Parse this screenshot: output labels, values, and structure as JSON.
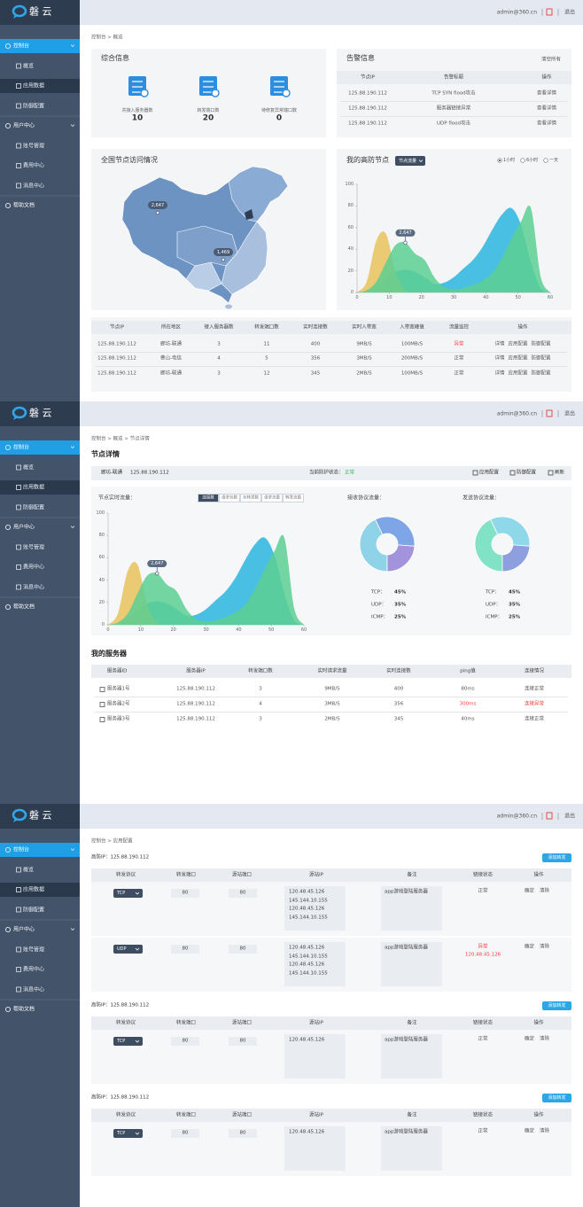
{
  "logo": "磐 云",
  "header": {
    "user": "admin@360.cn",
    "logout": "退出"
  },
  "sidebar": {
    "active_group": 0,
    "active_item": 1,
    "groups": [
      {
        "label": "控制台",
        "items": [
          "概览",
          "应用数据",
          "防御配置"
        ]
      },
      {
        "label": "用户中心",
        "items": [
          "账号管理",
          "费用中心",
          "消息中心"
        ]
      },
      {
        "label": "帮助文档",
        "items": []
      }
    ]
  },
  "screens": [
    {
      "breadcrumb": "控制台  >  概览",
      "summary": {
        "title": "综合信息",
        "stats": [
          {
            "label": "共接入服务器数",
            "value": 10
          },
          {
            "label": "转发端口数",
            "value": 20
          },
          {
            "label": "待修复异常端口数",
            "value": 0
          }
        ]
      },
      "alerts": {
        "title": "告警信息",
        "clear": "清空所有",
        "columns": [
          "节点IP",
          "告警标题",
          "操作"
        ],
        "rows": [
          [
            "125.88.190.112",
            "TCP SYN flood攻击",
            "查看详情"
          ],
          [
            "125.88.190.112",
            "服务器链接异常",
            "查看详情"
          ],
          [
            "125.88.190.112",
            "UDP flood攻击",
            "查看详情"
          ]
        ]
      },
      "map": {
        "title": "全国节点访问情况",
        "markers": [
          {
            "value": 2647,
            "label": "2,647"
          },
          {
            "value": 1469,
            "label": "1,469"
          }
        ]
      },
      "nodes_chart": {
        "type": "area",
        "title": "我的高防节点",
        "dropdown": "节点流量",
        "ranges": [
          "1小时",
          "6小时",
          "一天"
        ],
        "selected_range": 0,
        "x": [
          0,
          3,
          6,
          9,
          12,
          15,
          18,
          21,
          24,
          27,
          30,
          33,
          36,
          39,
          42,
          45,
          48,
          51,
          54,
          57,
          60
        ],
        "xlim": [
          0,
          60
        ],
        "xticks": [
          0,
          10,
          20,
          30,
          40,
          50,
          60
        ],
        "ylim": [
          0,
          100
        ],
        "yticks": [
          0,
          20,
          40,
          60,
          80,
          100
        ],
        "grid": false,
        "series": [
          {
            "color": "#2ab6df",
            "values": [
              0,
              1,
              6,
              13,
              19,
              21,
              19,
              14,
              8,
              9,
              14,
              22,
              30,
              42,
              58,
              72,
              78,
              62,
              28,
              4,
              0
            ]
          },
          {
            "color": "#e8c25c",
            "values": [
              0,
              10,
              48,
              54,
              18,
              2,
              0,
              0,
              0,
              0,
              0,
              0,
              0,
              0,
              0,
              0,
              0,
              0,
              0,
              0,
              0
            ]
          },
          {
            "color": "#5ccf92",
            "values": [
              0,
              2,
              10,
              28,
              44,
              46,
              36,
              30,
              14,
              5,
              3,
              4,
              7,
              11,
              18,
              32,
              50,
              66,
              78,
              15,
              0
            ]
          }
        ],
        "annotation": {
          "value": 2647,
          "label": "2,647"
        }
      },
      "nodes_table": {
        "columns": [
          "节点IP",
          "所在地区",
          "接入服务器数",
          "转发端口数",
          "实时连接数",
          "实时入带宽",
          "入带宽峰值",
          "流量监控",
          "操作"
        ],
        "rows": [
          [
            "125.88.190.112",
            "廊坊-联通",
            3,
            11,
            400,
            "9MB/S",
            "100MB/S",
            {
              "text": "异常",
              "color": "#f0413c"
            },
            [
              "详情",
              "应用配置",
              "防御配置"
            ]
          ],
          [
            "125.88.190.112",
            "佛山-电信",
            4,
            5,
            356,
            "3MB/S",
            "200MB/S",
            {
              "text": "正常"
            },
            [
              "详情",
              "应用配置",
              "防御配置"
            ]
          ],
          [
            "125.88.190.112",
            "廊坊-联通",
            3,
            12,
            345,
            "2MB/S",
            "100MB/S",
            {
              "text": "正常"
            },
            [
              "详情",
              "应用配置",
              "防御配置"
            ]
          ]
        ]
      }
    },
    {
      "breadcrumb": "控制台  >  概览  >  节点详情",
      "title": "节点详情",
      "node": {
        "region": "廊坊-联通",
        "ip": "125.88.190.112",
        "status_label": "当前防护状态：",
        "status": "正常",
        "status_color": "#2fbd5a",
        "actions": [
          "应用配置",
          "防御配置",
          "刷新"
        ]
      },
      "traffic_chart": {
        "type": "area",
        "title": "节点实时流量：",
        "tabs": [
          "连接数",
          "请求包数",
          "包转发数",
          "请求流量",
          "转发流量"
        ],
        "active_tab": 0,
        "x": [
          0,
          3,
          6,
          9,
          12,
          15,
          18,
          21,
          24,
          27,
          30,
          33,
          36,
          39,
          42,
          45,
          48,
          51,
          54,
          57,
          60
        ],
        "xlim": [
          0,
          60
        ],
        "xticks": [
          0,
          10,
          20,
          30,
          40,
          50,
          60
        ],
        "ylim": [
          0,
          100
        ],
        "yticks": [
          0,
          20,
          40,
          60,
          80,
          100
        ],
        "grid": false,
        "series": [
          {
            "color": "#2ab6df",
            "values": [
              0,
              1,
              6,
              13,
              19,
              21,
              19,
              14,
              8,
              9,
              14,
              22,
              30,
              42,
              58,
              72,
              78,
              62,
              28,
              4,
              0
            ]
          },
          {
            "color": "#e8c25c",
            "values": [
              0,
              10,
              48,
              54,
              18,
              2,
              0,
              0,
              0,
              0,
              0,
              0,
              0,
              0,
              0,
              0,
              0,
              0,
              0,
              0,
              0
            ]
          },
          {
            "color": "#5ccf92",
            "values": [
              0,
              2,
              10,
              28,
              44,
              46,
              36,
              30,
              14,
              5,
              3,
              4,
              7,
              11,
              18,
              32,
              50,
              66,
              78,
              15,
              0
            ]
          }
        ],
        "annotation": {
          "value": 2647,
          "label": "2,647"
        }
      },
      "protocol_charts": [
        {
          "type": "donut",
          "title": "接收协议流量：",
          "categories": [
            "TCP：",
            "UDP：",
            "ICMP："
          ],
          "values": [
            45,
            35,
            25
          ],
          "value_labels": [
            "45%",
            "35%",
            "25%"
          ],
          "colors": [
            "#8fd3e8",
            "#7ea6e6",
            "#a393dc"
          ]
        },
        {
          "type": "donut",
          "title": "发送协议流量：",
          "categories": [
            "TCP：",
            "UDP：",
            "ICMP："
          ],
          "values": [
            45,
            35,
            25
          ],
          "value_labels": [
            "45%",
            "35%",
            "25%"
          ],
          "colors": [
            "#82e2c6",
            "#8fd8ea",
            "#8e9fe0"
          ]
        }
      ],
      "servers": {
        "title": "我的服务器",
        "columns": [
          "服务器ID",
          "服务器IP",
          "转发端口数",
          "实时请求流量",
          "实时连接数",
          "ping值",
          "连接情况"
        ],
        "rows": [
          [
            "服务器1号",
            "125.88.190.112",
            3,
            "9MB/S",
            400,
            "80ms",
            "连接正常"
          ],
          [
            "服务器2号",
            "125.88.190.112",
            4,
            "3MB/S",
            356,
            {
              "text": "300ms",
              "color": "#f0413c"
            },
            {
              "text": "连接异常",
              "color": "#f0413c"
            }
          ],
          [
            "服务器3号",
            "125.88.190.112",
            3,
            "2MB/S",
            345,
            "40ms",
            "连接正常"
          ]
        ]
      }
    },
    {
      "breadcrumb": "控制台  >  应用配置",
      "groups": [
        {
          "ip_label": "高防IP：125.88.190.112",
          "add": "添加转发",
          "columns": [
            "转发协议",
            "转发端口",
            "源站端口",
            "源站IP",
            "备注",
            "链接状态",
            "操作"
          ],
          "rows": [
            {
              "protocol": "TCP",
              "port": 80,
              "src_port": 80,
              "src_ips": [
                "120.48.45.126",
                "145.144.10.155",
                "120.48.45.126",
                "145.144.10.155"
              ],
              "note": "app游戏登陆服务器",
              "status": [
                {
                  "text": "正常"
                }
              ],
              "actions": [
                "确定",
                "清除"
              ]
            },
            {
              "protocol": "UDP",
              "port": 80,
              "src_port": 80,
              "src_ips": [
                "120.48.45.126",
                "145.144.10.155",
                "120.48.45.126",
                "145.144.10.155"
              ],
              "note": "app游戏登陆服务器",
              "status": [
                {
                  "text": "异常",
                  "color": "#f0413c"
                },
                {
                  "text": "120.48.45.126",
                  "color": "#f0413c"
                }
              ],
              "actions": [
                "确定",
                "清除"
              ]
            }
          ]
        },
        {
          "ip_label": "高防IP：125.88.190.112",
          "add": "添加转发",
          "columns": [
            "转发协议",
            "转发端口",
            "源站端口",
            "源站IP",
            "备注",
            "链接状态",
            "操作"
          ],
          "rows": [
            {
              "protocol": "TCP",
              "port": 80,
              "src_port": 80,
              "src_ips": [
                "120.48.45.126"
              ],
              "note": "app游戏登陆服务器",
              "status": [
                {
                  "text": "正常"
                }
              ],
              "actions": [
                "确定",
                "清除"
              ]
            }
          ]
        },
        {
          "ip_label": "高防IP：125.88.190.112",
          "add": "添加转发",
          "columns": [
            "转发协议",
            "转发端口",
            "源站端口",
            "源站IP",
            "备注",
            "链接状态",
            "操作"
          ],
          "rows": [
            {
              "protocol": "TCP",
              "port": 80,
              "src_port": 80,
              "src_ips": [
                "120.48.45.126"
              ],
              "note": "app游戏登陆服务器",
              "status": [
                {
                  "text": "正常"
                }
              ],
              "actions": [
                "确定",
                "清除"
              ]
            }
          ]
        }
      ]
    }
  ]
}
